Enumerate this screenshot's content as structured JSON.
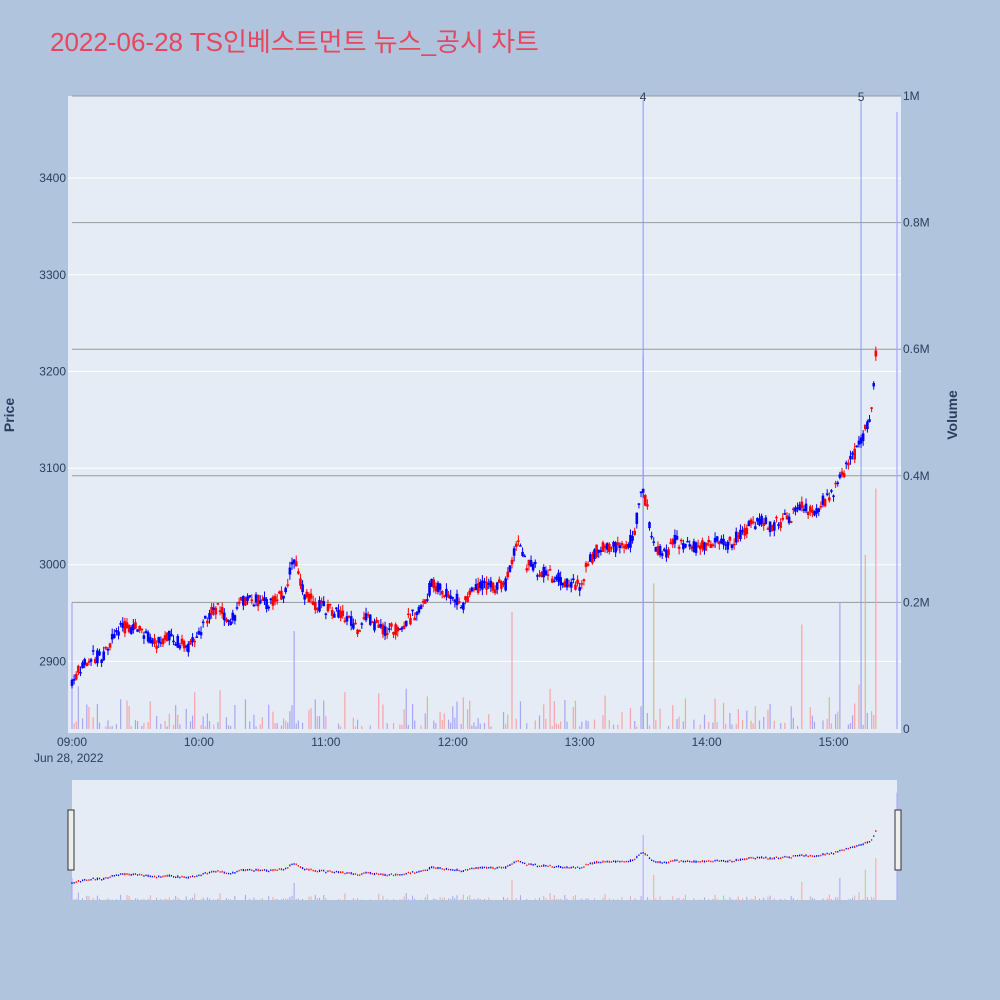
{
  "title": "2022-06-28 TS인베스트먼트 뉴스_공시 차트",
  "colors": {
    "background": "#b0c4de",
    "plot_bg": "#e5ecf6",
    "title": "#e8455f",
    "up": "#ff0000",
    "down": "#0000ff",
    "volume_up": "#f4a6a6",
    "volume_down": "#a6a6f4"
  },
  "chart_data": {
    "type": "candlestick",
    "x_axis": {
      "tick_labels": [
        "09:00",
        "10:00",
        "11:00",
        "12:00",
        "13:00",
        "14:00",
        "15:00"
      ],
      "date_label": "Jun 28, 2022",
      "range": [
        "09:00",
        "15:30"
      ]
    },
    "y_axis_price": {
      "label": "Price",
      "ticks": [
        2900,
        3000,
        3100,
        3200,
        3300,
        3400
      ],
      "range": [
        2830,
        3485
      ]
    },
    "y_axis_volume": {
      "label": "Volume",
      "tick_labels": [
        "0",
        "0.2M",
        "0.4M",
        "0.6M",
        "0.8M",
        "1M"
      ],
      "ticks": [
        0,
        200000,
        400000,
        600000,
        800000,
        1000000
      ],
      "range": [
        0,
        1000000
      ]
    },
    "news_markers": [
      {
        "label": "4",
        "time": "13:30"
      },
      {
        "label": "5",
        "time": "15:13"
      }
    ],
    "price_path": [
      [
        "09:00",
        2880
      ],
      [
        "09:05",
        2895
      ],
      [
        "09:10",
        2905
      ],
      [
        "09:15",
        2905
      ],
      [
        "09:20",
        2930
      ],
      [
        "09:25",
        2935
      ],
      [
        "09:30",
        2935
      ],
      [
        "09:35",
        2925
      ],
      [
        "09:40",
        2918
      ],
      [
        "09:45",
        2928
      ],
      [
        "09:50",
        2920
      ],
      [
        "09:55",
        2915
      ],
      [
        "10:00",
        2930
      ],
      [
        "10:05",
        2950
      ],
      [
        "10:10",
        2955
      ],
      [
        "10:15",
        2940
      ],
      [
        "10:20",
        2960
      ],
      [
        "10:25",
        2965
      ],
      [
        "10:30",
        2960
      ],
      [
        "10:35",
        2962
      ],
      [
        "10:40",
        2968
      ],
      [
        "10:45",
        3005
      ],
      [
        "10:50",
        2970
      ],
      [
        "10:55",
        2960
      ],
      [
        "11:00",
        2955
      ],
      [
        "11:05",
        2950
      ],
      [
        "11:10",
        2945
      ],
      [
        "11:15",
        2935
      ],
      [
        "11:20",
        2945
      ],
      [
        "11:25",
        2935
      ],
      [
        "11:30",
        2932
      ],
      [
        "11:35",
        2935
      ],
      [
        "11:40",
        2945
      ],
      [
        "11:45",
        2955
      ],
      [
        "11:50",
        2980
      ],
      [
        "11:55",
        2975
      ],
      [
        "12:00",
        2965
      ],
      [
        "12:05",
        2960
      ],
      [
        "12:10",
        2975
      ],
      [
        "12:15",
        2980
      ],
      [
        "12:20",
        2977
      ],
      [
        "12:25",
        2980
      ],
      [
        "12:30",
        3025
      ],
      [
        "12:35",
        3000
      ],
      [
        "12:40",
        2995
      ],
      [
        "12:45",
        2990
      ],
      [
        "12:50",
        2985
      ],
      [
        "12:55",
        2982
      ],
      [
        "13:00",
        2980
      ],
      [
        "13:05",
        3005
      ],
      [
        "13:10",
        3020
      ],
      [
        "13:15",
        3018
      ],
      [
        "13:20",
        3020
      ],
      [
        "13:25",
        3025
      ],
      [
        "13:30",
        3080
      ],
      [
        "13:35",
        3020
      ],
      [
        "13:40",
        3010
      ],
      [
        "13:45",
        3025
      ],
      [
        "13:50",
        3020
      ],
      [
        "13:55",
        3018
      ],
      [
        "14:00",
        3022
      ],
      [
        "14:05",
        3025
      ],
      [
        "14:10",
        3020
      ],
      [
        "14:15",
        3030
      ],
      [
        "14:20",
        3040
      ],
      [
        "14:25",
        3045
      ],
      [
        "14:30",
        3040
      ],
      [
        "14:35",
        3045
      ],
      [
        "14:40",
        3050
      ],
      [
        "14:45",
        3060
      ],
      [
        "14:50",
        3055
      ],
      [
        "14:55",
        3065
      ],
      [
        "15:00",
        3075
      ],
      [
        "15:05",
        3095
      ],
      [
        "15:10",
        3115
      ],
      [
        "15:13",
        3125
      ],
      [
        "15:15",
        3140
      ],
      [
        "15:18",
        3160
      ],
      [
        "15:20",
        3215
      ]
    ],
    "volume_spikes": [
      {
        "time": "09:00",
        "value": 200000
      },
      {
        "time": "10:45",
        "value": 155000
      },
      {
        "time": "12:28",
        "value": 185000
      },
      {
        "time": "13:30",
        "value": 590000
      },
      {
        "time": "13:35",
        "value": 230000
      },
      {
        "time": "14:45",
        "value": 165000
      },
      {
        "time": "15:03",
        "value": 200000
      },
      {
        "time": "15:15",
        "value": 275000
      },
      {
        "time": "15:20",
        "value": 380000
      },
      {
        "time": "15:30",
        "value": 975000
      }
    ]
  }
}
